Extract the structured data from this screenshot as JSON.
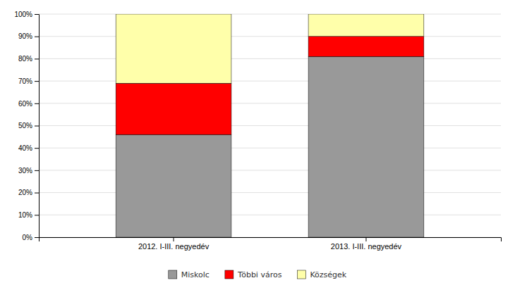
{
  "chart_data": {
    "type": "bar",
    "stacked": true,
    "categories": [
      "2012. I-III. negyedév",
      "2013. I-III. negyedév"
    ],
    "series": [
      {
        "name": "Miskolc",
        "color": "#999999",
        "values": [
          46,
          81
        ]
      },
      {
        "name": "Többi város",
        "color": "#ff0000",
        "values": [
          23,
          9
        ]
      },
      {
        "name": "Községek",
        "color": "#ffffaa",
        "values": [
          31,
          10
        ]
      }
    ],
    "ylim": [
      0,
      100
    ],
    "yticks": [
      {
        "value": 0,
        "label": "0%"
      },
      {
        "value": 10,
        "label": "10%"
      },
      {
        "value": 20,
        "label": "20%"
      },
      {
        "value": 30,
        "label": "30%"
      },
      {
        "value": 40,
        "label": "40%"
      },
      {
        "value": 50,
        "label": "50%"
      },
      {
        "value": 60,
        "label": "60%"
      },
      {
        "value": 70,
        "label": "70%"
      },
      {
        "value": 80,
        "label": "80%"
      },
      {
        "value": 90,
        "label": "90%"
      },
      {
        "value": 100,
        "label": "100%"
      }
    ],
    "grid": true,
    "legend": "bottom"
  }
}
